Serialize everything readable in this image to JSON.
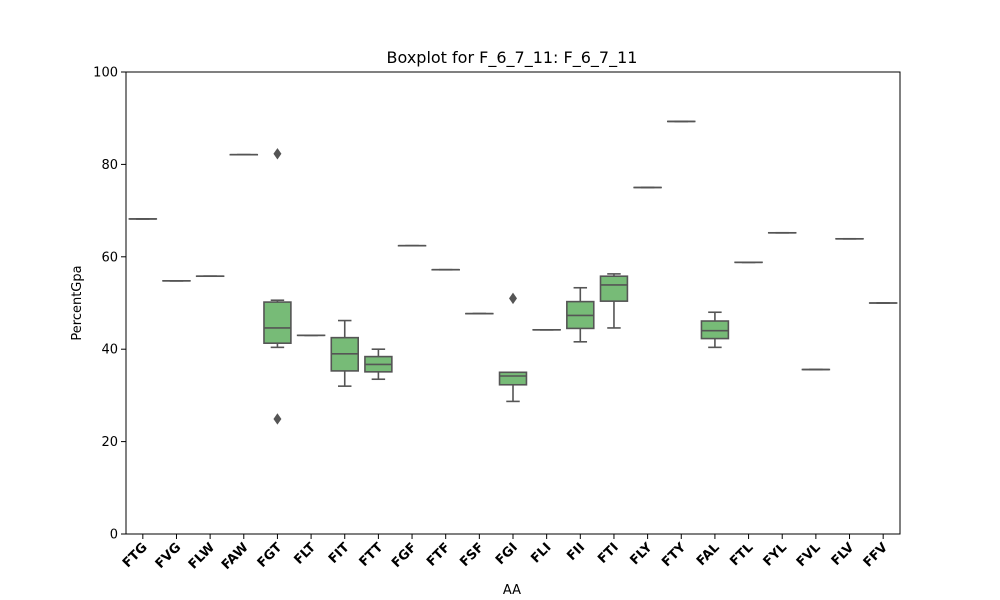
{
  "chart_data": {
    "type": "boxplot",
    "title": "Boxplot for F_6_7_11: F_6_7_11",
    "xlabel": "AA",
    "ylabel": "PercentGpa",
    "ylim": [
      0,
      100
    ],
    "yticks": [
      0,
      20,
      40,
      60,
      80,
      100
    ],
    "grid": false,
    "legend": "none",
    "box_color": "#77bb77",
    "line_color": "#555555",
    "categories": [
      "FTG",
      "FVG",
      "FLW",
      "FAW",
      "FGT",
      "FLT",
      "FIT",
      "FTT",
      "FGF",
      "FTF",
      "FSF",
      "FGI",
      "FLI",
      "FII",
      "FTI",
      "FLY",
      "FTY",
      "FAL",
      "FTL",
      "FYL",
      "FVL",
      "FLV",
      "FFV"
    ],
    "boxes": [
      {
        "label": "FTG",
        "whislo": 68.2,
        "q1": 68.2,
        "med": 68.2,
        "q3": 68.2,
        "whishi": 68.2,
        "fliers": []
      },
      {
        "label": "FVG",
        "whislo": 54.8,
        "q1": 54.8,
        "med": 54.8,
        "q3": 54.8,
        "whishi": 54.8,
        "fliers": []
      },
      {
        "label": "FLW",
        "whislo": 55.8,
        "q1": 55.8,
        "med": 55.8,
        "q3": 55.8,
        "whishi": 55.8,
        "fliers": []
      },
      {
        "label": "FAW",
        "whislo": 82.1,
        "q1": 82.1,
        "med": 82.1,
        "q3": 82.1,
        "whishi": 82.1,
        "fliers": []
      },
      {
        "label": "FGT",
        "whislo": 40.4,
        "q1": 41.3,
        "med": 44.6,
        "q3": 50.2,
        "whishi": 50.6,
        "fliers": [
          82.3,
          24.9
        ]
      },
      {
        "label": "FLT",
        "whislo": 43.0,
        "q1": 43.0,
        "med": 43.0,
        "q3": 43.0,
        "whishi": 43.0,
        "fliers": []
      },
      {
        "label": "FIT",
        "whislo": 32.0,
        "q1": 35.3,
        "med": 39.0,
        "q3": 42.5,
        "whishi": 46.2,
        "fliers": []
      },
      {
        "label": "FTT",
        "whislo": 33.5,
        "q1": 35.1,
        "med": 36.7,
        "q3": 38.4,
        "whishi": 40.0,
        "fliers": []
      },
      {
        "label": "FGF",
        "whislo": 62.4,
        "q1": 62.4,
        "med": 62.4,
        "q3": 62.4,
        "whishi": 62.4,
        "fliers": []
      },
      {
        "label": "FTF",
        "whislo": 57.2,
        "q1": 57.2,
        "med": 57.2,
        "q3": 57.2,
        "whishi": 57.2,
        "fliers": []
      },
      {
        "label": "FSF",
        "whislo": 47.7,
        "q1": 47.7,
        "med": 47.7,
        "q3": 47.7,
        "whishi": 47.7,
        "fliers": []
      },
      {
        "label": "FGI",
        "whislo": 28.7,
        "q1": 32.3,
        "med": 34.2,
        "q3": 35.0,
        "whishi": 35.0,
        "fliers": [
          51.0
        ]
      },
      {
        "label": "FLI",
        "whislo": 44.2,
        "q1": 44.2,
        "med": 44.2,
        "q3": 44.2,
        "whishi": 44.2,
        "fliers": []
      },
      {
        "label": "FII",
        "whislo": 41.6,
        "q1": 44.5,
        "med": 47.3,
        "q3": 50.3,
        "whishi": 53.3,
        "fliers": []
      },
      {
        "label": "FTI",
        "whislo": 44.6,
        "q1": 50.4,
        "med": 53.9,
        "q3": 55.8,
        "whishi": 56.3,
        "fliers": []
      },
      {
        "label": "FLY",
        "whislo": 75.0,
        "q1": 75.0,
        "med": 75.0,
        "q3": 75.0,
        "whishi": 75.0,
        "fliers": []
      },
      {
        "label": "FTY",
        "whislo": 89.3,
        "q1": 89.3,
        "med": 89.3,
        "q3": 89.3,
        "whishi": 89.3,
        "fliers": []
      },
      {
        "label": "FAL",
        "whislo": 40.4,
        "q1": 42.3,
        "med": 44.0,
        "q3": 46.1,
        "whishi": 48.0,
        "fliers": []
      },
      {
        "label": "FTL",
        "whislo": 58.8,
        "q1": 58.8,
        "med": 58.8,
        "q3": 58.8,
        "whishi": 58.8,
        "fliers": []
      },
      {
        "label": "FYL",
        "whislo": 65.2,
        "q1": 65.2,
        "med": 65.2,
        "q3": 65.2,
        "whishi": 65.2,
        "fliers": []
      },
      {
        "label": "FVL",
        "whislo": 35.6,
        "q1": 35.6,
        "med": 35.6,
        "q3": 35.6,
        "whishi": 35.6,
        "fliers": []
      },
      {
        "label": "FLV",
        "whislo": 63.9,
        "q1": 63.9,
        "med": 63.9,
        "q3": 63.9,
        "whishi": 63.9,
        "fliers": []
      },
      {
        "label": "FFV",
        "whislo": 50.0,
        "q1": 50.0,
        "med": 50.0,
        "q3": 50.0,
        "whishi": 50.0,
        "fliers": []
      }
    ]
  }
}
